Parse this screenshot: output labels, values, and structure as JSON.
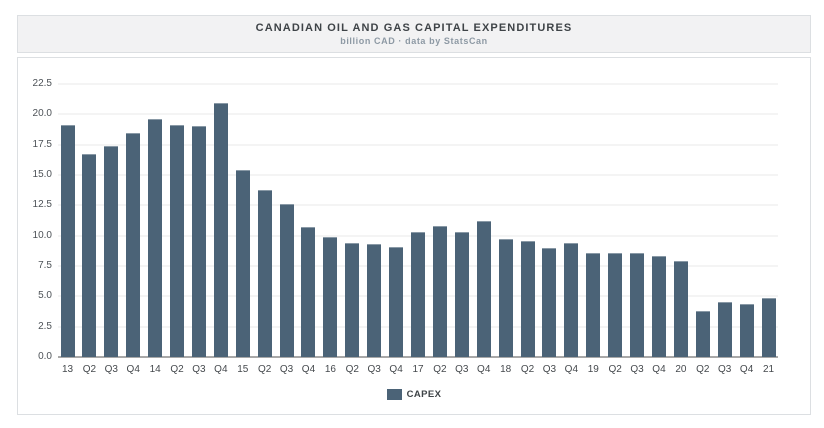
{
  "header": {
    "title": "CANADIAN OIL AND GAS CAPITAL EXPENDITURES",
    "subtitle": "billion CAD · data by StatsCan"
  },
  "legend": {
    "label": "CAPEX"
  },
  "colors": {
    "bar": "#4B6377",
    "grid": "#e8e8e8",
    "axis_line": "#a8a8a8",
    "header_bg": "#f2f2f3",
    "panel_border": "#dcdfe2",
    "title_text": "#3e4347",
    "subtitle_text": "#8d99a4",
    "tick_text": "#4d5257"
  },
  "chart_data": {
    "type": "bar",
    "title": "CANADIAN OIL AND GAS CAPITAL EXPENDITURES",
    "subtitle": "billion CAD · data by StatsCan",
    "categories": [
      "13",
      "Q2",
      "Q3",
      "Q4",
      "14",
      "Q2",
      "Q3",
      "Q4",
      "15",
      "Q2",
      "Q3",
      "Q4",
      "16",
      "Q2",
      "Q3",
      "Q4",
      "17",
      "Q2",
      "Q3",
      "Q4",
      "18",
      "Q2",
      "Q3",
      "Q4",
      "19",
      "Q2",
      "Q3",
      "Q4",
      "20",
      "Q2",
      "Q3",
      "Q4",
      "21"
    ],
    "series": [
      {
        "name": "CAPEX",
        "values": [
          19.1,
          16.7,
          17.4,
          18.5,
          19.6,
          19.1,
          19.0,
          20.9,
          15.4,
          13.8,
          12.6,
          10.7,
          9.9,
          9.4,
          9.3,
          9.1,
          10.3,
          10.8,
          10.3,
          11.2,
          9.7,
          9.6,
          9.0,
          9.4,
          8.6,
          8.6,
          8.6,
          8.3,
          7.9,
          3.8,
          4.5,
          4.4,
          4.9
        ]
      }
    ],
    "xlabel": "",
    "ylabel": "",
    "ylim": [
      0,
      22.5
    ],
    "yticks": [
      0,
      2.5,
      5,
      7.5,
      10,
      12.5,
      15,
      17.5,
      20,
      22.5
    ],
    "ytick_labels": [
      "0.0",
      "2.5",
      "5.0",
      "7.5",
      "10.0",
      "12.5",
      "15.0",
      "17.5",
      "20.0",
      "22.5"
    ],
    "grid": true,
    "legend_position": "bottom"
  }
}
